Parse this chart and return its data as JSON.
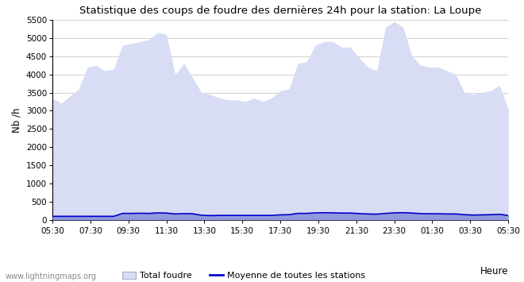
{
  "title": "Statistique des coups de foudre des dernières 24h pour la station: La Loupe",
  "ylabel": "Nb /h",
  "xlabel": "Heure",
  "watermark": "www.lightningmaps.org",
  "ylim": [
    0,
    5500
  ],
  "yticks": [
    0,
    500,
    1000,
    1500,
    2000,
    2500,
    3000,
    3500,
    4000,
    4500,
    5000,
    5500
  ],
  "x_labels": [
    "05:30",
    "07:30",
    "09:30",
    "11:30",
    "13:30",
    "15:30",
    "17:30",
    "19:30",
    "21:30",
    "23:30",
    "01:30",
    "03:30",
    "05:30"
  ],
  "bg_color": "#ffffff",
  "plot_bg_color": "#ffffff",
  "grid_color": "#d0d0d0",
  "total_foudre_color": "#d8dcf5",
  "local_foudre_color": "#9099dd",
  "moyenne_color": "#0000cc",
  "total_foudre_values": [
    3350,
    3200,
    3400,
    3600,
    4200,
    4250,
    4100,
    4150,
    4800,
    4850,
    4900,
    4950,
    5150,
    5100,
    4000,
    4300,
    3900,
    3500,
    3450,
    3350,
    3300,
    3300,
    3250,
    3350,
    3250,
    3350,
    3550,
    3600,
    4300,
    4350,
    4800,
    4900,
    4900,
    4750,
    4750,
    4450,
    4200,
    4100,
    5300,
    5450,
    5300,
    4500,
    4250,
    4200,
    4200,
    4100,
    4000,
    3500,
    3450,
    3500,
    3550,
    3700,
    3050
  ],
  "local_foudre_values": [
    100,
    100,
    100,
    100,
    100,
    100,
    100,
    100,
    180,
    180,
    185,
    180,
    195,
    190,
    165,
    175,
    170,
    130,
    120,
    125,
    125,
    125,
    125,
    125,
    125,
    125,
    140,
    145,
    180,
    180,
    195,
    200,
    195,
    190,
    190,
    175,
    165,
    160,
    180,
    195,
    200,
    190,
    175,
    170,
    170,
    165,
    165,
    145,
    135,
    140,
    145,
    155,
    125
  ],
  "moyenne_values": [
    100,
    100,
    100,
    100,
    100,
    100,
    100,
    100,
    180,
    180,
    185,
    180,
    195,
    190,
    165,
    175,
    170,
    130,
    120,
    125,
    125,
    125,
    125,
    125,
    125,
    125,
    140,
    145,
    180,
    180,
    195,
    200,
    195,
    190,
    190,
    175,
    165,
    160,
    180,
    195,
    200,
    190,
    175,
    170,
    170,
    165,
    165,
    145,
    135,
    140,
    145,
    155,
    125
  ],
  "n_points": 53
}
